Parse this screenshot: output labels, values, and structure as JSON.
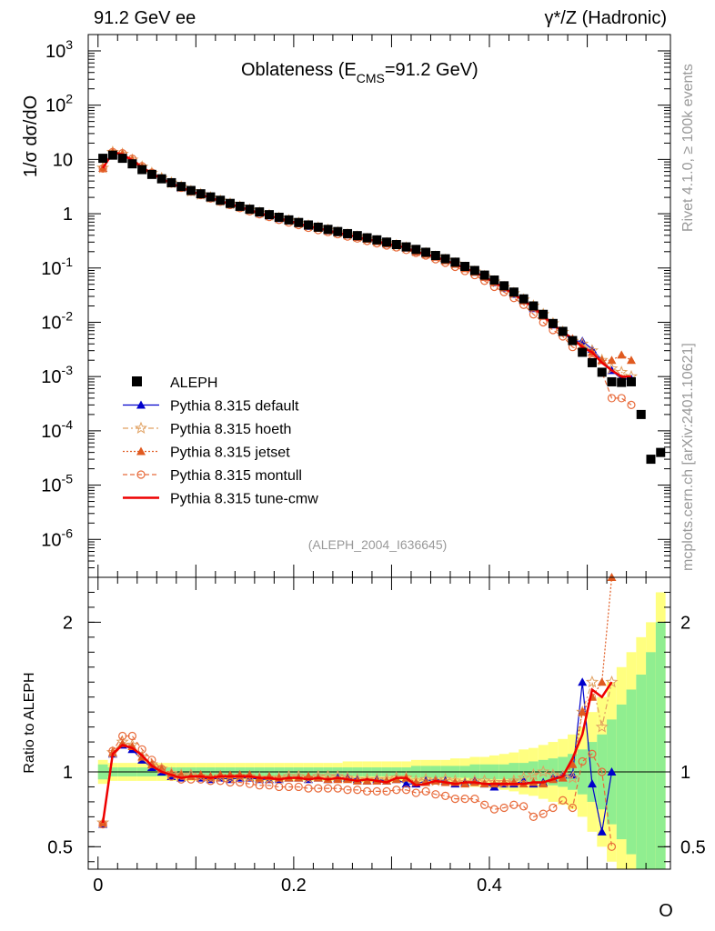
{
  "header": {
    "left": "91.2 GeV ee",
    "right": "γ*/Z (Hadronic)",
    "title_prefix": "Oblateness (E",
    "title_sub": "CMS",
    "title_suffix": "=91.2 GeV)",
    "analysis_id": "(ALEPH_2004_I636645)"
  },
  "side_labels": {
    "rivet": "Rivet 4.1.0, ≥ 100k events",
    "mcplots": "mcplots.cern.ch [arXiv:2401.10621]"
  },
  "colors": {
    "aleph": "#000000",
    "default": "#0000cc",
    "hoeth": "#e0a060",
    "jetset": "#e05a20",
    "montull": "#e86a3a",
    "cmw": "#ee0000",
    "band_green": "#90ee90",
    "band_yellow": "#ffff80"
  },
  "chart_data": [
    {
      "type": "scatter",
      "panel": "main",
      "ylabel": "1/σ  dσ/dO",
      "xlabel": "O",
      "yscale": "log",
      "xlim": [
        -0.01,
        0.585
      ],
      "ylim": [
        2e-07,
        2000
      ],
      "y_ticks": [
        1e-06,
        1e-05,
        0.0001,
        0.001,
        0.01,
        0.1,
        1,
        10,
        100,
        1000
      ],
      "y_tick_labels": [
        "10^-6",
        "10^-5",
        "10^-4",
        "10^-3",
        "10^-2",
        "10^-1",
        "1",
        "10",
        "10^2",
        "10^3"
      ],
      "x_ticks": [
        0,
        0.2,
        0.4
      ],
      "x_tick_labels": [
        "0",
        "0.2",
        "0.4"
      ],
      "legend": [
        "ALEPH",
        "Pythia 8.315 default",
        "Pythia 8.315 hoeth",
        "Pythia 8.315 jetset",
        "Pythia 8.315 montull",
        "Pythia 8.315 tune-cmw"
      ],
      "aleph": {
        "x": [
          0.005,
          0.015,
          0.025,
          0.035,
          0.045,
          0.055,
          0.065,
          0.075,
          0.085,
          0.095,
          0.105,
          0.115,
          0.125,
          0.135,
          0.145,
          0.155,
          0.165,
          0.175,
          0.185,
          0.195,
          0.205,
          0.215,
          0.225,
          0.235,
          0.245,
          0.255,
          0.265,
          0.275,
          0.285,
          0.295,
          0.305,
          0.315,
          0.325,
          0.335,
          0.345,
          0.355,
          0.365,
          0.375,
          0.385,
          0.395,
          0.405,
          0.415,
          0.425,
          0.435,
          0.445,
          0.455,
          0.465,
          0.475,
          0.485,
          0.495,
          0.505,
          0.515,
          0.525,
          0.535,
          0.545,
          0.555,
          0.565,
          0.575
        ],
        "y": [
          10.5,
          12.0,
          10.5,
          8.3,
          6.5,
          5.3,
          4.4,
          3.73,
          3.17,
          2.68,
          2.33,
          2.04,
          1.77,
          1.55,
          1.37,
          1.21,
          1.08,
          0.96,
          0.86,
          0.77,
          0.69,
          0.62,
          0.565,
          0.515,
          0.47,
          0.43,
          0.395,
          0.36,
          0.33,
          0.3,
          0.27,
          0.245,
          0.22,
          0.195,
          0.17,
          0.148,
          0.128,
          0.107,
          0.09,
          0.074,
          0.06,
          0.047,
          0.036,
          0.027,
          0.02,
          0.014,
          0.0095,
          0.0068,
          0.0046,
          0.0028,
          0.0018,
          0.0012,
          0.0008,
          0.00078,
          0.0008,
          0.0002,
          3e-05,
          4e-05
        ]
      },
      "models": {
        "x": [
          0.005,
          0.015,
          0.025,
          0.035,
          0.045,
          0.055,
          0.065,
          0.075,
          0.085,
          0.095,
          0.105,
          0.115,
          0.125,
          0.135,
          0.145,
          0.155,
          0.165,
          0.175,
          0.185,
          0.195,
          0.205,
          0.215,
          0.225,
          0.235,
          0.245,
          0.255,
          0.265,
          0.275,
          0.285,
          0.295,
          0.305,
          0.315,
          0.325,
          0.335,
          0.345,
          0.355,
          0.365,
          0.375,
          0.385,
          0.395,
          0.405,
          0.415,
          0.425,
          0.435,
          0.445,
          0.455,
          0.465,
          0.475,
          0.485,
          0.495,
          0.505,
          0.515,
          0.525,
          0.535,
          0.545
        ],
        "series": [
          {
            "name": "Pythia 8.315 default",
            "y": [
              6.9,
              13.4,
              12.4,
              9.5,
              7.1,
              5.5,
              4.4,
              3.6,
              3.0,
              2.6,
              2.25,
              1.96,
              1.72,
              1.51,
              1.33,
              1.17,
              1.03,
              0.92,
              0.82,
              0.74,
              0.66,
              0.59,
              0.54,
              0.49,
              0.45,
              0.41,
              0.37,
              0.34,
              0.31,
              0.28,
              0.26,
              0.235,
              0.2,
              0.183,
              0.16,
              0.138,
              0.118,
              0.099,
              0.084,
              0.068,
              0.054,
              0.043,
              0.033,
              0.025,
              0.018,
              0.013,
              0.009,
              0.0065,
              0.0045,
              0.0045,
              0.0032,
              0.002,
              0.0013,
              0.0009,
              0.0009
            ]
          },
          {
            "name": "Pythia 8.315 hoeth",
            "y": [
              7.0,
              13.6,
              12.6,
              9.8,
              7.3,
              5.6,
              4.5,
              3.7,
              3.1,
              2.6,
              2.27,
              1.98,
              1.73,
              1.52,
              1.34,
              1.18,
              1.04,
              0.93,
              0.83,
              0.75,
              0.67,
              0.6,
              0.55,
              0.5,
              0.45,
              0.41,
              0.375,
              0.34,
              0.31,
              0.285,
              0.26,
              0.235,
              0.205,
              0.185,
              0.16,
              0.14,
              0.12,
              0.1,
              0.085,
              0.07,
              0.056,
              0.044,
              0.034,
              0.026,
              0.02,
              0.014,
              0.0095,
              0.0066,
              0.0045,
              0.004,
              0.003,
              0.002,
              0.0014,
              0.0012,
              0.001
            ]
          },
          {
            "name": "Pythia 8.315 jetset",
            "y": [
              6.9,
              13.5,
              12.5,
              9.7,
              7.2,
              5.6,
              4.5,
              3.7,
              3.1,
              2.6,
              2.28,
              1.99,
              1.74,
              1.52,
              1.34,
              1.18,
              1.04,
              0.93,
              0.83,
              0.74,
              0.66,
              0.6,
              0.54,
              0.49,
              0.45,
              0.41,
              0.37,
              0.34,
              0.31,
              0.28,
              0.26,
              0.235,
              0.2,
              0.18,
              0.16,
              0.137,
              0.118,
              0.098,
              0.084,
              0.068,
              0.055,
              0.044,
              0.034,
              0.025,
              0.019,
              0.013,
              0.0092,
              0.0066,
              0.005,
              0.0035,
              0.0028,
              0.002,
              0.002,
              0.0025,
              0.002
            ]
          },
          {
            "name": "Pythia 8.315 montull",
            "y": [
              6.8,
              13.7,
              13.0,
              10.3,
              7.5,
              5.7,
              4.5,
              3.6,
              3.0,
              2.55,
              2.21,
              1.91,
              1.66,
              1.45,
              1.27,
              1.11,
              0.98,
              0.87,
              0.77,
              0.69,
              0.62,
              0.55,
              0.5,
              0.46,
              0.42,
              0.38,
              0.35,
              0.315,
              0.285,
              0.26,
              0.24,
              0.215,
              0.19,
              0.17,
              0.145,
              0.125,
              0.105,
              0.088,
              0.074,
              0.058,
              0.045,
              0.036,
              0.028,
              0.021,
              0.014,
              0.01,
              0.0072,
              0.0055,
              0.0035,
              0.003,
              0.002,
              0.0012,
              0.0004,
              0.0004,
              0.0003
            ]
          },
          {
            "name": "Pythia 8.315 tune-cmw",
            "y": [
              6.9,
              13.4,
              12.4,
              9.6,
              7.2,
              5.5,
              4.4,
              3.65,
              3.05,
              2.6,
              2.25,
              1.96,
              1.72,
              1.51,
              1.33,
              1.17,
              1.03,
              0.92,
              0.82,
              0.74,
              0.66,
              0.59,
              0.54,
              0.49,
              0.45,
              0.41,
              0.37,
              0.34,
              0.31,
              0.28,
              0.26,
              0.235,
              0.2,
              0.18,
              0.16,
              0.138,
              0.118,
              0.099,
              0.084,
              0.068,
              0.055,
              0.043,
              0.033,
              0.025,
              0.019,
              0.013,
              0.0092,
              0.0066,
              0.005,
              0.0035,
              0.0028,
              0.0018,
              0.0013,
              0.001,
              0.001
            ]
          }
        ]
      }
    },
    {
      "type": "line",
      "panel": "ratio",
      "ylabel": "Ratio to ALEPH",
      "xlabel": "O",
      "ylim": [
        0.35,
        2.3
      ],
      "y_ticks": [
        0.5,
        1,
        2
      ],
      "y_tick_labels": [
        "0.5",
        "1",
        "2"
      ],
      "x": [
        0.005,
        0.015,
        0.025,
        0.035,
        0.045,
        0.055,
        0.065,
        0.075,
        0.085,
        0.095,
        0.105,
        0.115,
        0.125,
        0.135,
        0.145,
        0.155,
        0.165,
        0.175,
        0.185,
        0.195,
        0.205,
        0.215,
        0.225,
        0.235,
        0.245,
        0.255,
        0.265,
        0.275,
        0.285,
        0.295,
        0.305,
        0.315,
        0.325,
        0.335,
        0.345,
        0.355,
        0.365,
        0.375,
        0.385,
        0.395,
        0.405,
        0.415,
        0.425,
        0.435,
        0.445,
        0.455,
        0.465,
        0.475,
        0.485,
        0.495,
        0.505,
        0.515,
        0.525
      ],
      "series": [
        {
          "name": "Pythia 8.315 default",
          "values": [
            0.65,
            1.12,
            1.18,
            1.15,
            1.08,
            1.03,
            1.0,
            0.97,
            0.96,
            0.97,
            0.96,
            0.95,
            0.96,
            0.95,
            0.96,
            0.96,
            0.95,
            0.95,
            0.95,
            0.96,
            0.96,
            0.95,
            0.96,
            0.95,
            0.96,
            0.96,
            0.95,
            0.94,
            0.95,
            0.94,
            0.95,
            0.92,
            0.92,
            0.94,
            0.95,
            0.94,
            0.92,
            0.93,
            0.94,
            0.92,
            0.9,
            0.92,
            0.92,
            0.94,
            0.92,
            0.93,
            0.96,
            0.98,
            0.98,
            1.6,
            0.92,
            0.6,
            1.0
          ]
        },
        {
          "name": "Pythia 8.315 hoeth",
          "values": [
            0.66,
            1.13,
            1.2,
            1.18,
            1.1,
            1.05,
            1.02,
            0.99,
            0.98,
            0.98,
            0.97,
            0.96,
            0.97,
            0.96,
            0.97,
            0.97,
            0.96,
            0.96,
            0.96,
            0.97,
            0.97,
            0.96,
            0.97,
            0.97,
            0.97,
            0.96,
            0.95,
            0.95,
            0.95,
            0.95,
            0.96,
            0.96,
            0.94,
            0.95,
            0.94,
            0.95,
            0.94,
            0.93,
            0.94,
            0.94,
            0.93,
            0.93,
            0.94,
            0.96,
            0.98,
            1.0,
            0.98,
            0.97,
            0.96,
            1.4,
            1.6,
            1.3,
            1.6
          ]
        },
        {
          "name": "Pythia 8.315 jetset",
          "values": [
            0.66,
            1.13,
            1.19,
            1.17,
            1.1,
            1.05,
            1.02,
            0.99,
            0.98,
            0.97,
            0.98,
            0.97,
            0.98,
            0.98,
            0.98,
            0.98,
            0.96,
            0.97,
            0.96,
            0.96,
            0.96,
            0.97,
            0.96,
            0.95,
            0.95,
            0.95,
            0.94,
            0.94,
            0.94,
            0.94,
            0.95,
            0.96,
            0.93,
            0.93,
            0.94,
            0.93,
            0.93,
            0.92,
            0.93,
            0.92,
            0.92,
            0.93,
            0.93,
            0.92,
            0.93,
            0.92,
            0.95,
            0.96,
            1.05,
            1.4,
            1.5,
            1.6,
            2.3
          ]
        },
        {
          "name": "Pythia 8.315 montull",
          "values": [
            0.65,
            1.14,
            1.24,
            1.24,
            1.15,
            1.08,
            1.02,
            0.97,
            0.95,
            0.95,
            0.95,
            0.94,
            0.94,
            0.93,
            0.93,
            0.92,
            0.91,
            0.91,
            0.9,
            0.9,
            0.9,
            0.89,
            0.89,
            0.89,
            0.89,
            0.88,
            0.88,
            0.87,
            0.87,
            0.87,
            0.88,
            0.88,
            0.86,
            0.87,
            0.85,
            0.84,
            0.82,
            0.82,
            0.82,
            0.78,
            0.75,
            0.76,
            0.78,
            0.77,
            0.7,
            0.72,
            0.76,
            0.81,
            0.76,
            1.07,
            1.12,
            1.0,
            0.5
          ]
        },
        {
          "name": "Pythia 8.315 tune-cmw",
          "values": [
            0.66,
            1.12,
            1.18,
            1.16,
            1.11,
            1.04,
            1.0,
            0.98,
            0.96,
            0.97,
            0.97,
            0.96,
            0.97,
            0.97,
            0.97,
            0.97,
            0.96,
            0.96,
            0.95,
            0.96,
            0.96,
            0.95,
            0.96,
            0.95,
            0.96,
            0.95,
            0.94,
            0.95,
            0.94,
            0.93,
            0.96,
            0.96,
            0.91,
            0.92,
            0.94,
            0.93,
            0.92,
            0.93,
            0.93,
            0.92,
            0.92,
            0.92,
            0.92,
            0.92,
            0.93,
            0.93,
            0.95,
            0.97,
            1.09,
            1.25,
            1.55,
            1.5,
            1.6
          ]
        }
      ],
      "band": {
        "x": [
          0.005,
          0.015,
          0.025,
          0.035,
          0.045,
          0.055,
          0.065,
          0.075,
          0.085,
          0.095,
          0.105,
          0.115,
          0.125,
          0.135,
          0.145,
          0.155,
          0.165,
          0.175,
          0.185,
          0.195,
          0.205,
          0.215,
          0.225,
          0.235,
          0.245,
          0.255,
          0.265,
          0.275,
          0.285,
          0.295,
          0.305,
          0.315,
          0.325,
          0.335,
          0.345,
          0.355,
          0.365,
          0.375,
          0.385,
          0.395,
          0.405,
          0.415,
          0.425,
          0.435,
          0.445,
          0.455,
          0.465,
          0.475,
          0.485,
          0.495,
          0.505,
          0.515,
          0.525,
          0.535,
          0.545,
          0.555,
          0.565,
          0.575
        ],
        "stat": [
          0.05,
          0.03,
          0.03,
          0.03,
          0.03,
          0.03,
          0.03,
          0.03,
          0.03,
          0.03,
          0.03,
          0.03,
          0.03,
          0.03,
          0.03,
          0.03,
          0.03,
          0.03,
          0.03,
          0.03,
          0.03,
          0.03,
          0.03,
          0.03,
          0.03,
          0.03,
          0.03,
          0.03,
          0.03,
          0.03,
          0.03,
          0.03,
          0.04,
          0.04,
          0.04,
          0.04,
          0.04,
          0.04,
          0.05,
          0.05,
          0.05,
          0.05,
          0.06,
          0.06,
          0.07,
          0.08,
          0.09,
          0.1,
          0.12,
          0.15,
          0.2,
          0.25,
          0.35,
          0.45,
          0.55,
          0.65,
          0.8,
          1.0
        ],
        "total": [
          0.08,
          0.06,
          0.06,
          0.06,
          0.06,
          0.06,
          0.06,
          0.06,
          0.06,
          0.06,
          0.06,
          0.06,
          0.06,
          0.06,
          0.06,
          0.06,
          0.06,
          0.06,
          0.06,
          0.06,
          0.06,
          0.06,
          0.06,
          0.06,
          0.06,
          0.07,
          0.07,
          0.07,
          0.07,
          0.07,
          0.07,
          0.07,
          0.08,
          0.08,
          0.08,
          0.08,
          0.09,
          0.09,
          0.1,
          0.1,
          0.11,
          0.12,
          0.13,
          0.15,
          0.16,
          0.18,
          0.2,
          0.22,
          0.25,
          0.3,
          0.4,
          0.5,
          0.6,
          0.7,
          0.8,
          0.9,
          1.0,
          1.2
        ]
      }
    }
  ]
}
